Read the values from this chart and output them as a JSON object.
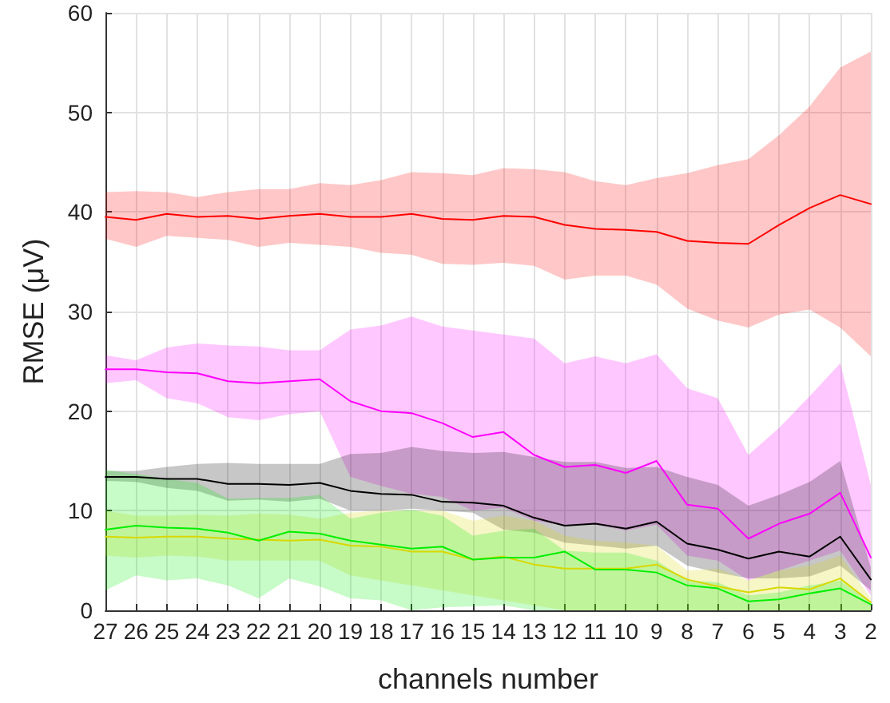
{
  "chart_data": {
    "type": "line",
    "xlabel": "channels number",
    "ylabel": "RMSE (μV)",
    "categories": [
      "27",
      "26",
      "25",
      "24",
      "23",
      "22",
      "21",
      "20",
      "19",
      "18",
      "17",
      "16",
      "15",
      "14",
      "13",
      "12",
      "11",
      "10",
      "9",
      "8",
      "7",
      "6",
      "5",
      "4",
      "3",
      "2"
    ],
    "ylim": [
      0,
      60
    ],
    "yticks": [
      0,
      10,
      20,
      30,
      40,
      50,
      60
    ],
    "grid": true,
    "marker": "none",
    "line_style": "solid",
    "series": [
      {
        "color": "#ff0000",
        "values": [
          39.5,
          39.2,
          39.8,
          39.5,
          39.6,
          39.3,
          39.6,
          39.8,
          39.5,
          39.5,
          39.8,
          39.3,
          39.2,
          39.6,
          39.5,
          38.7,
          38.3,
          38.2,
          38.0,
          37.1,
          36.9,
          36.8,
          38.7,
          40.4,
          41.7,
          40.8
        ],
        "upper": [
          42.0,
          42.1,
          42.0,
          41.5,
          42.0,
          42.3,
          42.3,
          42.9,
          42.7,
          43.2,
          44.0,
          43.9,
          43.7,
          44.4,
          44.3,
          44.0,
          43.1,
          42.7,
          43.4,
          43.9,
          44.7,
          45.3,
          47.7,
          50.6,
          54.5,
          56.1
        ],
        "lower": [
          37.3,
          36.5,
          37.6,
          37.4,
          37.2,
          36.5,
          36.9,
          36.7,
          36.5,
          35.9,
          35.7,
          34.8,
          34.7,
          34.9,
          34.6,
          33.2,
          33.6,
          33.6,
          32.7,
          30.3,
          29.1,
          28.4,
          29.7,
          30.2,
          28.4,
          25.5
        ]
      },
      {
        "color": "#ff00ff",
        "values": [
          24.2,
          24.2,
          23.9,
          23.8,
          23.0,
          22.8,
          23.0,
          23.2,
          21.0,
          20.0,
          19.8,
          18.8,
          17.4,
          17.9,
          15.6,
          14.4,
          14.6,
          13.8,
          15.0,
          10.6,
          10.2,
          7.2,
          8.7,
          9.7,
          11.8,
          5.3
        ],
        "upper": [
          25.6,
          25.1,
          26.4,
          26.8,
          26.6,
          26.5,
          26.1,
          26.1,
          28.2,
          28.6,
          29.5,
          28.5,
          28.1,
          27.7,
          27.3,
          24.8,
          25.5,
          24.8,
          25.7,
          22.3,
          21.3,
          15.6,
          18.3,
          21.5,
          24.8,
          12.6
        ],
        "lower": [
          22.8,
          23.1,
          21.3,
          20.8,
          19.4,
          19.1,
          19.7,
          20.0,
          13.4,
          12.5,
          11.7,
          11.4,
          10.0,
          10.3,
          9.0,
          8.5,
          8.6,
          8.0,
          8.6,
          5.5,
          5.0,
          3.0,
          4.0,
          5.0,
          6.0,
          1.5
        ]
      },
      {
        "color": "#000000",
        "values": [
          13.4,
          13.4,
          13.2,
          13.2,
          12.7,
          12.7,
          12.6,
          12.8,
          12.0,
          11.7,
          11.6,
          10.9,
          10.8,
          10.5,
          9.3,
          8.5,
          8.7,
          8.2,
          8.9,
          6.7,
          6.1,
          5.2,
          5.9,
          5.4,
          7.4,
          3.1
        ],
        "upper": [
          14.0,
          14.0,
          14.4,
          14.7,
          14.8,
          14.7,
          14.7,
          14.7,
          15.7,
          15.8,
          16.4,
          16.0,
          15.8,
          15.9,
          15.4,
          14.9,
          14.9,
          14.3,
          14.4,
          13.4,
          12.6,
          10.5,
          11.6,
          12.9,
          15.0,
          4.3
        ],
        "lower": [
          13.0,
          12.9,
          12.3,
          12.0,
          11.0,
          11.1,
          10.9,
          11.2,
          10.0,
          10.0,
          10.2,
          10.0,
          9.8,
          8.1,
          7.8,
          6.8,
          6.5,
          6.2,
          6.5,
          4.5,
          3.8,
          3.2,
          3.2,
          3.4,
          4.5,
          2.0
        ]
      },
      {
        "color": "#d8d800",
        "values": [
          7.4,
          7.3,
          7.4,
          7.4,
          7.2,
          7.1,
          7.0,
          7.1,
          6.5,
          6.4,
          5.9,
          5.9,
          5.1,
          5.4,
          4.6,
          4.2,
          4.2,
          4.2,
          4.6,
          3.1,
          2.4,
          1.8,
          2.3,
          2.1,
          3.2,
          0.8
        ],
        "upper": [
          10.0,
          9.5,
          9.5,
          9.6,
          9.5,
          9.7,
          9.6,
          9.2,
          9.8,
          10.0,
          10.0,
          10.0,
          9.0,
          9.5,
          9.0,
          7.5,
          7.0,
          6.8,
          6.5,
          4.0,
          4.2,
          3.0,
          4.0,
          4.5,
          5.5,
          1.2
        ],
        "lower": [
          5.5,
          5.3,
          5.5,
          5.4,
          5.0,
          5.0,
          5.0,
          5.0,
          3.5,
          3.0,
          2.5,
          2.0,
          1.5,
          1.0,
          0.5,
          0,
          0,
          0,
          0,
          0,
          0,
          0,
          0,
          0,
          0,
          0
        ]
      },
      {
        "color": "#00ee00",
        "values": [
          8.1,
          8.5,
          8.3,
          8.2,
          7.8,
          7.0,
          7.9,
          7.7,
          7.0,
          6.6,
          6.2,
          6.4,
          5.1,
          5.3,
          5.3,
          5.9,
          4.1,
          4.1,
          3.8,
          2.5,
          2.2,
          0.9,
          1.1,
          1.7,
          2.2,
          0.6
        ],
        "upper": [
          14.1,
          13.7,
          13.2,
          12.8,
          11.2,
          11.3,
          11.3,
          11.6,
          9.2,
          9.8,
          10.1,
          9.5,
          7.5,
          8.0,
          8.2,
          6.0,
          5.8,
          5.8,
          5.0,
          3.0,
          2.8,
          1.5,
          1.8,
          2.5,
          3.0,
          0.8
        ],
        "lower": [
          2.0,
          3.5,
          3.0,
          3.2,
          2.5,
          1.2,
          3.2,
          2.4,
          1.2,
          1.0,
          0,
          0.3,
          0.4,
          0.5,
          0,
          0,
          0,
          0,
          0,
          0,
          0,
          0,
          0,
          0,
          0,
          0
        ]
      }
    ]
  }
}
